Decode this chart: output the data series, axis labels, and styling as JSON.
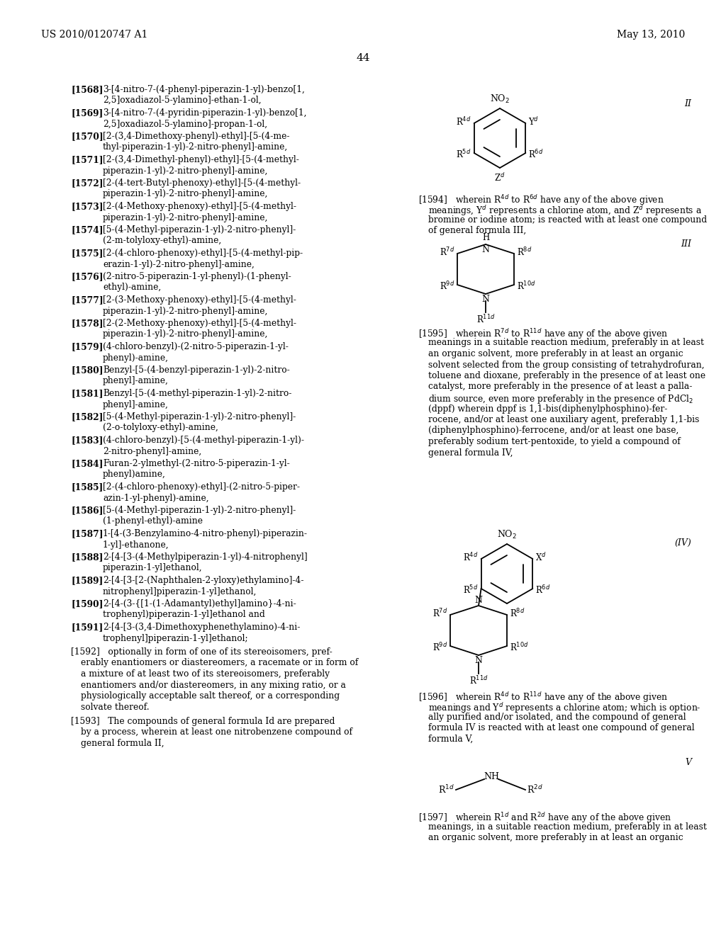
{
  "page_number": "44",
  "header_left": "US 2010/0120747 A1",
  "header_right": "May 13, 2010",
  "background_color": "#ffffff",
  "text_color": "#000000"
}
